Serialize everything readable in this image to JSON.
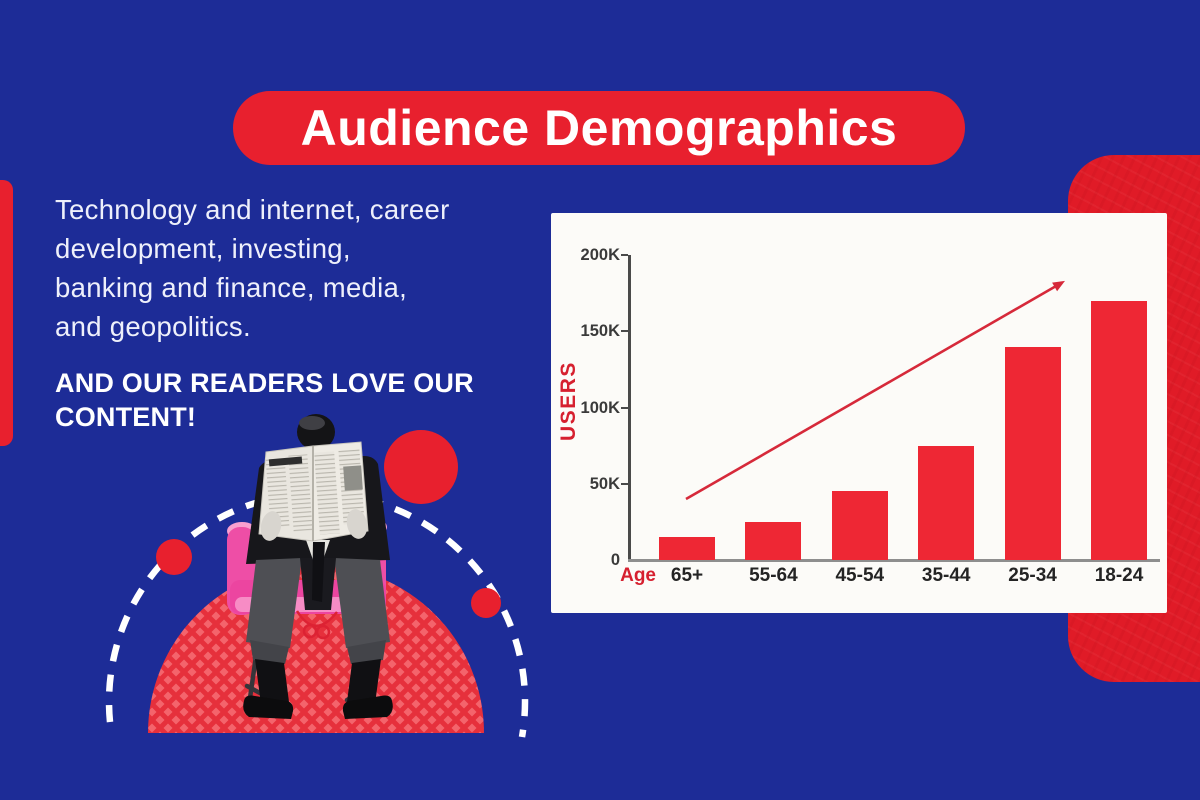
{
  "palette": {
    "background": "#1d2c97",
    "accent_red": "#e8202e",
    "bar_red": "#ee2734",
    "chair_pink": "#ee4ea6",
    "panel_white": "#fcfbf8"
  },
  "header": {
    "title": "Audience Demographics"
  },
  "intro": {
    "lines": [
      "Technology and internet, career",
      "development, investing,",
      "banking and finance, media,",
      "and geopolitics."
    ],
    "emphasis_lines": [
      "AND OUR READERS LOVE OUR",
      "CONTENT!"
    ]
  },
  "illustration": {
    "alt": "Man in a dark suit reading a newspaper, seated in a pink chair on a red patterned semicircle with a white dashed arc and red circles"
  },
  "chart_data": {
    "type": "bar",
    "title": "",
    "categories": [
      "65+",
      "55-64",
      "45-54",
      "35-44",
      "25-34",
      "18-24"
    ],
    "values": [
      15000,
      25000,
      45000,
      75000,
      140000,
      170000
    ],
    "xlabel": "Age",
    "ylabel": "USERS",
    "ytick_labels": [
      "0",
      "50K",
      "100K",
      "150K",
      "200K"
    ],
    "ylim": [
      0,
      200000
    ],
    "grid": false,
    "legend": null,
    "bar_color": "#ee2734",
    "axis_color": "#4a4a4a",
    "baseline_color": "#8e8e8e",
    "tick_text_color": "#3a3a3a",
    "category_text_color": "#242424",
    "axis_title_color": "#d6202f",
    "trend_arrow": {
      "from_users": 40000,
      "to_users": 183000,
      "color": "#d6293a"
    }
  }
}
